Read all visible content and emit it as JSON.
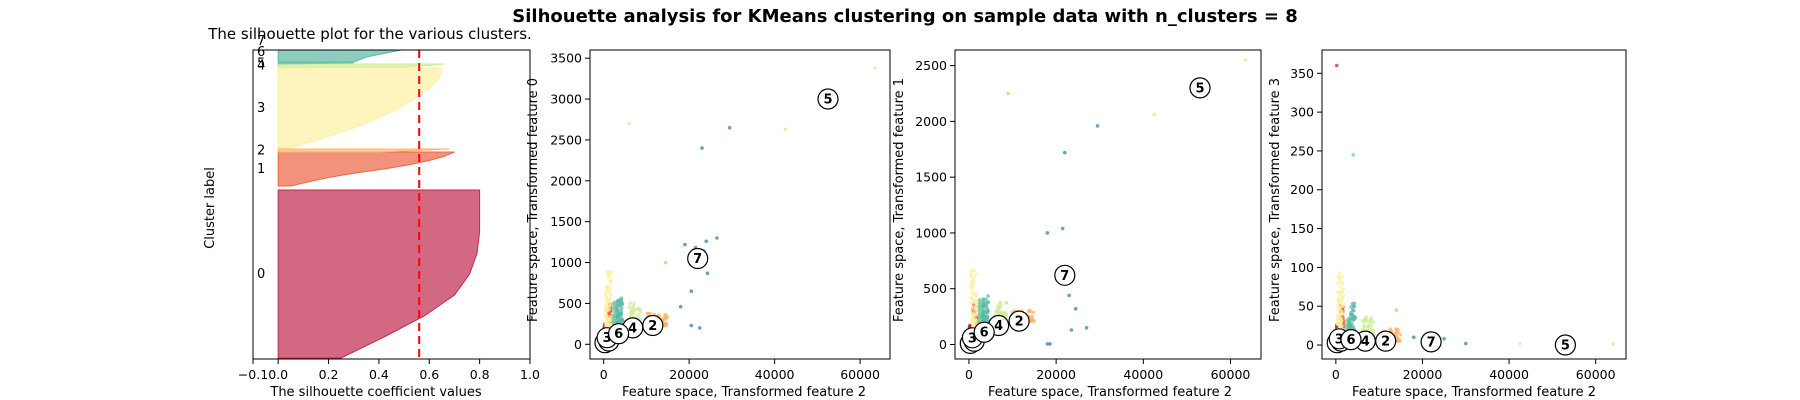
{
  "figure": {
    "suptitle": "Silhouette analysis for KMeans clustering on sample data with n_clusters = 8"
  },
  "colors": {
    "clusters": [
      "#c0284d",
      "#ee6445",
      "#fdb668",
      "#fdf0a3",
      "#d1ed9a",
      "#7acca6",
      "#5cb8a5",
      "#3a7eb9"
    ],
    "average_line": "#ff0000"
  },
  "chart_data": [
    {
      "type": "silhouette",
      "title": "The silhouette plot for the various clusters.",
      "xlabel": "The silhouette coefficient values",
      "ylabel": "Cluster label",
      "xlim": [
        -0.1,
        1.0
      ],
      "x_ticks": [
        -0.1,
        0.0,
        0.2,
        0.4,
        0.6,
        0.8,
        1.0
      ],
      "x_tick_labels": [
        "−0.1",
        "0.0",
        "0.2",
        "0.4",
        "0.6",
        "0.8",
        "1.0"
      ],
      "y_ticks_shown": false,
      "average_silhouette": 0.56,
      "clusters": [
        {
          "label": "0",
          "size": 2250,
          "max_value": 0.8,
          "profile": [
            0.8,
            0.8,
            0.8,
            0.79,
            0.76,
            0.7,
            0.58,
            0.42,
            0.25
          ]
        },
        {
          "label": "1",
          "size": 330,
          "max_value": 0.7,
          "profile": [
            0.7,
            0.66,
            0.6,
            0.52,
            0.42,
            0.3,
            0.2,
            0.12,
            0.05
          ]
        },
        {
          "label": "2",
          "size": 20,
          "max_value": 0.68,
          "profile": [
            0.68,
            0.6,
            0.5,
            0.4
          ]
        },
        {
          "label": "3",
          "size": 600,
          "max_value": 0.65,
          "profile": [
            0.65,
            0.64,
            0.6,
            0.55,
            0.48,
            0.4,
            0.3,
            0.18,
            0.05
          ]
        },
        {
          "label": "4",
          "size": 20,
          "max_value": 0.66,
          "profile": [
            0.66,
            0.6,
            0.5
          ]
        },
        {
          "label": "5",
          "size": 1,
          "max_value": 0.3,
          "profile": [
            0.3
          ]
        },
        {
          "label": "6",
          "size": 180,
          "max_value": 0.6,
          "profile": [
            0.6,
            0.55,
            0.45,
            0.35,
            0.3
          ]
        },
        {
          "label": "7",
          "size": 10,
          "max_value": 0.4,
          "profile": [
            0.4,
            0.3
          ]
        }
      ]
    },
    {
      "type": "scatter",
      "xlabel": "Feature space, Transformed feature 2",
      "ylabel": "Feature space, Transformed feature 0",
      "xlim": [
        -3200,
        67000
      ],
      "ylim": [
        -180,
        3600
      ],
      "x_ticks": [
        0,
        20000,
        40000,
        60000
      ],
      "y_ticks": [
        0,
        500,
        1000,
        1500,
        2000,
        2500,
        3000,
        3500
      ],
      "centers": [
        {
          "label": "0",
          "x": 300,
          "y": 20
        },
        {
          "label": "1",
          "x": 1200,
          "y": 40
        },
        {
          "label": "2",
          "x": 11500,
          "y": 230
        },
        {
          "label": "3",
          "x": 800,
          "y": 80
        },
        {
          "label": "4",
          "x": 6800,
          "y": 200
        },
        {
          "label": "5",
          "x": 52500,
          "y": 3000
        },
        {
          "label": "6",
          "x": 3500,
          "y": 130
        },
        {
          "label": "7",
          "x": 22000,
          "y": 1050
        }
      ],
      "outliers": [
        {
          "cluster": 7,
          "x": 23000,
          "y": 2400
        },
        {
          "cluster": 7,
          "x": 29500,
          "y": 2650
        },
        {
          "cluster": 4,
          "x": 42500,
          "y": 2630
        },
        {
          "cluster": 4,
          "x": 63500,
          "y": 3380
        },
        {
          "cluster": 7,
          "x": 24000,
          "y": 1260
        },
        {
          "cluster": 7,
          "x": 26500,
          "y": 1300
        },
        {
          "cluster": 7,
          "x": 19000,
          "y": 1220
        },
        {
          "cluster": 7,
          "x": 21000,
          "y": 1150
        },
        {
          "cluster": 7,
          "x": 24300,
          "y": 870
        },
        {
          "cluster": 7,
          "x": 20500,
          "y": 650
        },
        {
          "cluster": 7,
          "x": 18000,
          "y": 460
        },
        {
          "cluster": 7,
          "x": 20500,
          "y": 230
        },
        {
          "cluster": 7,
          "x": 22500,
          "y": 200
        },
        {
          "cluster": 4,
          "x": 6000,
          "y": 2700
        },
        {
          "cluster": 2,
          "x": 14500,
          "y": 1000
        }
      ]
    },
    {
      "type": "scatter",
      "xlabel": "Feature space, Transformed feature 2",
      "ylabel": "Feature space, Transformed feature 1",
      "xlim": [
        -3200,
        67000
      ],
      "ylim": [
        -130,
        2640
      ],
      "x_ticks": [
        0,
        20000,
        40000,
        60000
      ],
      "y_ticks": [
        0,
        500,
        1000,
        1500,
        2000,
        2500
      ],
      "centers": [
        {
          "label": "0",
          "x": 300,
          "y": 10
        },
        {
          "label": "1",
          "x": 1200,
          "y": 30
        },
        {
          "label": "2",
          "x": 11500,
          "y": 210
        },
        {
          "label": "3",
          "x": 800,
          "y": 60
        },
        {
          "label": "4",
          "x": 6800,
          "y": 170
        },
        {
          "label": "5",
          "x": 53000,
          "y": 2300
        },
        {
          "label": "6",
          "x": 3500,
          "y": 110
        },
        {
          "label": "7",
          "x": 22000,
          "y": 620
        }
      ],
      "outliers": [
        {
          "cluster": 7,
          "x": 29500,
          "y": 1960
        },
        {
          "cluster": 4,
          "x": 42500,
          "y": 2060
        },
        {
          "cluster": 4,
          "x": 63500,
          "y": 2550
        },
        {
          "cluster": 7,
          "x": 22000,
          "y": 1720
        },
        {
          "cluster": 7,
          "x": 21500,
          "y": 1040
        },
        {
          "cluster": 7,
          "x": 18000,
          "y": 1000
        },
        {
          "cluster": 7,
          "x": 23000,
          "y": 440
        },
        {
          "cluster": 7,
          "x": 24500,
          "y": 320
        },
        {
          "cluster": 7,
          "x": 27000,
          "y": 150
        },
        {
          "cluster": 7,
          "x": 23500,
          "y": 130
        },
        {
          "cluster": 7,
          "x": 18000,
          "y": 5
        },
        {
          "cluster": 7,
          "x": 18600,
          "y": 5
        },
        {
          "cluster": 2,
          "x": 9000,
          "y": 2250
        }
      ]
    },
    {
      "type": "scatter",
      "xlabel": "Feature space, Transformed feature 2",
      "ylabel": "Feature space, Transformed feature 3",
      "xlim": [
        -3200,
        67000
      ],
      "ylim": [
        -18,
        380
      ],
      "x_ticks": [
        0,
        20000,
        40000,
        60000
      ],
      "y_ticks": [
        0,
        50,
        100,
        150,
        200,
        250,
        300,
        350
      ],
      "centers": [
        {
          "label": "0",
          "x": 300,
          "y": 3
        },
        {
          "label": "1",
          "x": 1200,
          "y": 5
        },
        {
          "label": "2",
          "x": 11500,
          "y": 5
        },
        {
          "label": "3",
          "x": 800,
          "y": 8
        },
        {
          "label": "4",
          "x": 6800,
          "y": 5
        },
        {
          "label": "5",
          "x": 53000,
          "y": 0
        },
        {
          "label": "6",
          "x": 3500,
          "y": 7
        },
        {
          "label": "7",
          "x": 22000,
          "y": 4
        }
      ],
      "outliers": [
        {
          "cluster": 0,
          "x": 200,
          "y": 360
        },
        {
          "cluster": 5,
          "x": 4000,
          "y": 245
        },
        {
          "cluster": 7,
          "x": 25000,
          "y": 8
        },
        {
          "cluster": 7,
          "x": 30000,
          "y": 2
        },
        {
          "cluster": 4,
          "x": 42500,
          "y": 2
        },
        {
          "cluster": 4,
          "x": 64000,
          "y": 1
        },
        {
          "cluster": 2,
          "x": 14000,
          "y": 45
        },
        {
          "cluster": 7,
          "x": 18000,
          "y": 10
        },
        {
          "cluster": 7,
          "x": 20500,
          "y": 3
        }
      ]
    }
  ]
}
